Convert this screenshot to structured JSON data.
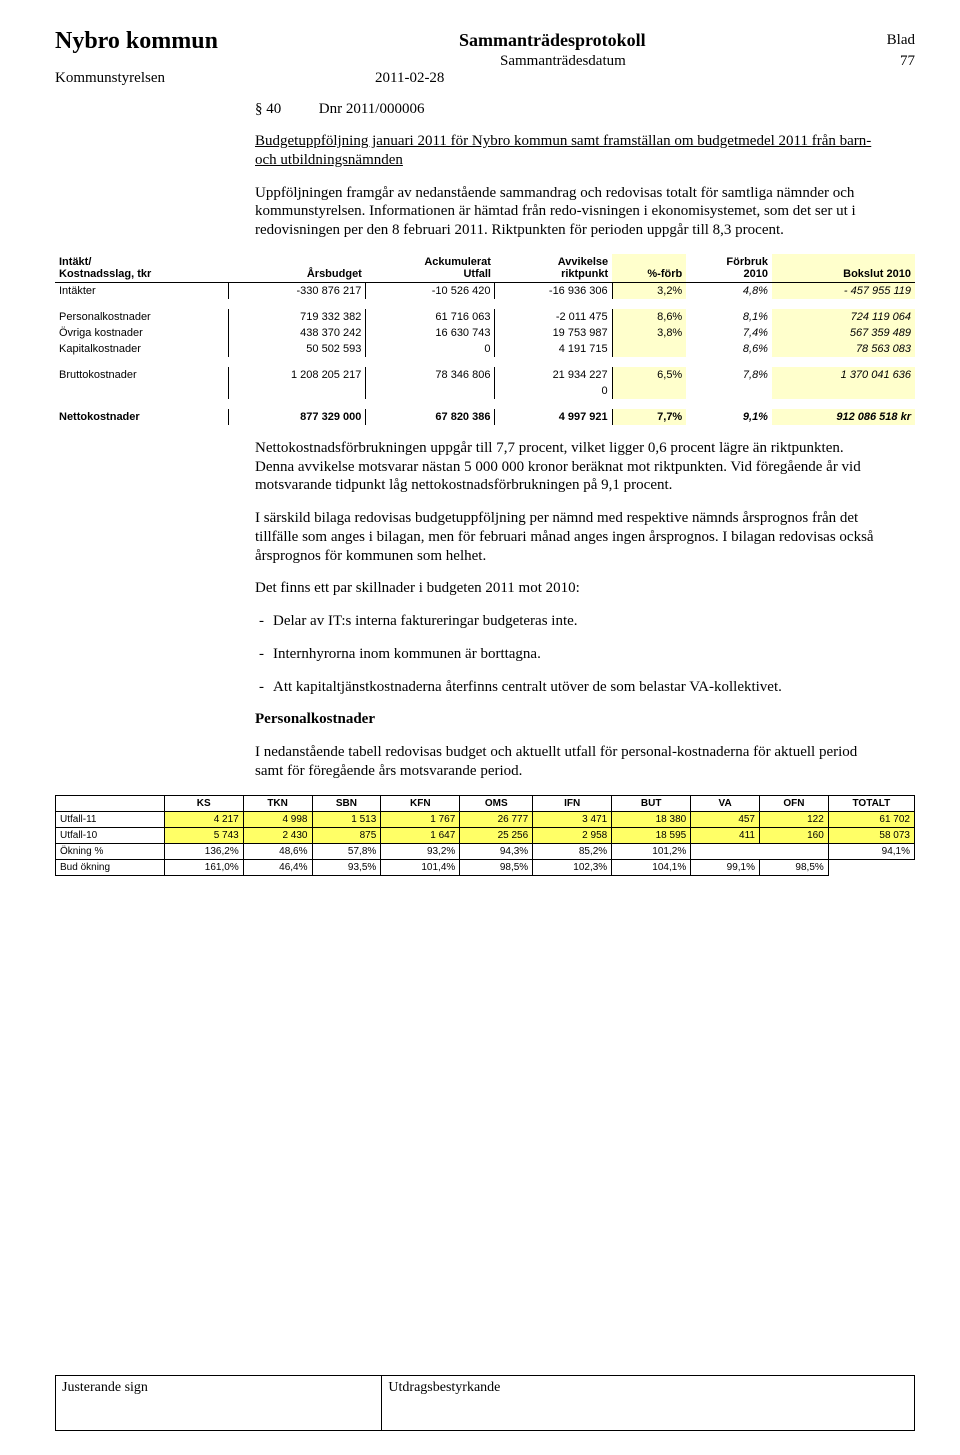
{
  "header": {
    "org": "Nybro kommun",
    "proto": "Sammanträdesprotokoll",
    "blad": "Blad",
    "subdate": "Sammanträdesdatum",
    "pagenum": "77",
    "unit": "Kommunstyrelsen",
    "date": "2011-02-28"
  },
  "item": {
    "sec": "§ 40",
    "dnr": "Dnr 2011/000006",
    "title": "Budgetuppföljning januari 2011 för Nybro kommun samt framställan om budgetmedel 2011 från barn- och utbildningsnämnden",
    "p1": "Uppföljningen framgår av nedanstående sammandrag och redovisas totalt för samtliga nämnder och kommunstyrelsen. Informationen är hämtad från redo-visningen i ekonomisystemet, som det ser ut i redovisningen per den 8 februari 2011. Riktpunkten för perioden uppgår till 8,3 procent.",
    "p2": "Nettokostnadsförbrukningen uppgår till 7,7 procent, vilket ligger 0,6 procent lägre än riktpunkten. Denna avvikelse motsvarar nästan 5 000 000 kronor beräknat mot riktpunkten. Vid föregående år vid motsvarande tidpunkt låg nettokostnadsförbrukningen på 9,1 procent.",
    "p3": "I särskild bilaga redovisas budgetuppföljning per nämnd med respektive nämnds årsprognos från det tillfälle som anges i bilagan, men för februari månad anges ingen årsprognos. I bilagan redovisas också årsprognos för kommunen som helhet.",
    "p4": "Det finns ett par skillnader i budgeten 2011 mot 2010:",
    "b1": "Delar av IT:s interna faktureringar budgeteras inte.",
    "b2": "Internhyrorna inom kommunen är borttagna.",
    "b3": "Att kapitaltjänstkostnaderna återfinns centralt utöver de som belastar VA-kollektivet.",
    "h_pk": "Personalkostnader",
    "p5": "I nedanstående tabell redovisas budget och aktuellt utfall för personal-kostnaderna för aktuell period samt för föregående års motsvarande period."
  },
  "t1": {
    "h": [
      "Intäkt/\nKostnadsslag, tkr",
      "Årsbudget",
      "Ackumulerat\nUtfall",
      "Avvikelse\nriktpunkt",
      "%-förb",
      "Förbruk\n2010",
      "Bokslut 2010"
    ],
    "rows": [
      {
        "l": "Intäkter",
        "v": [
          "-330 876 217",
          "-10 526 420",
          "-16 936 306",
          "3,2%",
          "4,8%",
          "-   457 955 119"
        ],
        "sep": true
      },
      {
        "l": "Personalkostnader",
        "v": [
          "719 332 382",
          "61 716 063",
          "-2 011 475",
          "8,6%",
          "8,1%",
          "724 119 064"
        ]
      },
      {
        "l": "Övriga kostnader",
        "v": [
          "438 370 242",
          "16 630 743",
          "19 753 987",
          "3,8%",
          "7,4%",
          "567 359 489"
        ]
      },
      {
        "l": "Kapitalkostnader",
        "v": [
          "50 502 593",
          "0",
          "4 191 715",
          "",
          "8,6%",
          "78 563 083"
        ],
        "sep": true
      },
      {
        "l": "Bruttokostnader",
        "v": [
          "1 208 205 217",
          "78 346 806",
          "21 934 227",
          "6,5%",
          "7,8%",
          "1 370 041 636"
        ]
      },
      {
        "l": "",
        "v": [
          "",
          "",
          "0",
          "",
          "",
          ""
        ],
        "sep": true
      },
      {
        "l": "Nettokostnader",
        "v": [
          "877 329 000",
          "67 820 386",
          "4 997 921",
          "7,7%",
          "9,1%",
          "912 086 518 kr"
        ],
        "bold": true
      }
    ]
  },
  "t2": {
    "h": [
      "",
      "KS",
      "TKN",
      "SBN",
      "KFN",
      "OMS",
      "IFN",
      "BUT",
      "VA",
      "OFN",
      "TOTALT"
    ],
    "r": [
      {
        "l": "Utfall-11",
        "v": [
          "4 217",
          "4 998",
          "1 513",
          "1 767",
          "26 777",
          "3 471",
          "18 380",
          "457",
          "122",
          "61 702"
        ],
        "y": true
      },
      {
        "l": "Utfall-10",
        "v": [
          "5 743",
          "2 430",
          "875",
          "1 647",
          "25 256",
          "2 958",
          "18 595",
          "411",
          "160",
          "58 073"
        ],
        "y": true
      },
      {
        "l": "Ökning %",
        "v": [
          "136,2%",
          "48,6%",
          "57,8%",
          "93,2%",
          "94,3%",
          "85,2%",
          "101,2%",
          "",
          "",
          "94,1%"
        ]
      },
      {
        "l": "Bud ökning",
        "v": [
          "161,0%",
          "46,4%",
          "93,5%",
          "101,4%",
          "98,5%",
          "102,3%",
          "104,1%",
          "99,1%",
          "98,5%",
          ""
        ]
      }
    ]
  },
  "footer": {
    "l": "Justerande sign",
    "r": "Utdragsbestyrkande"
  }
}
